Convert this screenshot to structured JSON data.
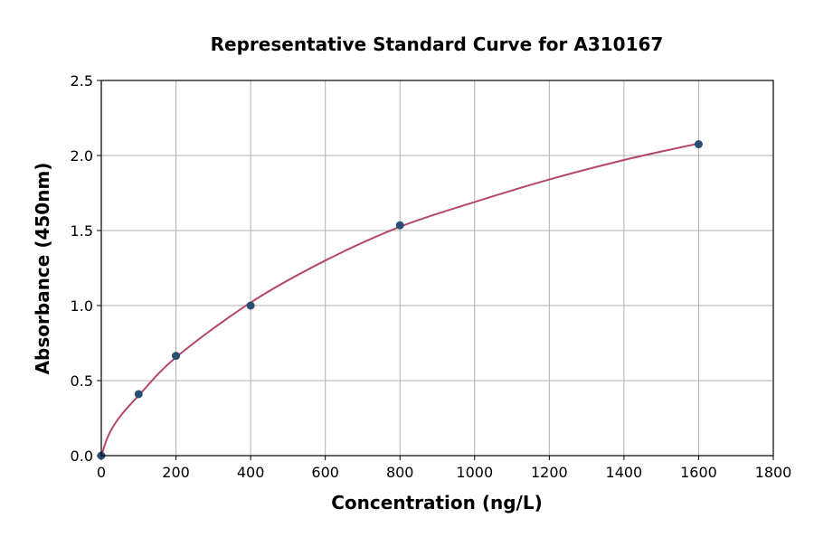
{
  "chart_data": {
    "type": "scatter",
    "title": "Representative Standard Curve for A310167",
    "xlabel": "Concentration (ng/L)",
    "ylabel": "Absorbance (450nm)",
    "xlim": [
      0,
      1800
    ],
    "ylim": [
      0,
      2.5
    ],
    "xticks": [
      0,
      200,
      400,
      600,
      800,
      1000,
      1200,
      1400,
      1600,
      1800
    ],
    "yticks": [
      0.0,
      0.5,
      1.0,
      1.5,
      2.0,
      2.5
    ],
    "grid": true,
    "points": {
      "x": [
        0,
        100,
        200,
        400,
        800,
        1600
      ],
      "y": [
        0.0,
        0.41,
        0.665,
        1.0,
        1.535,
        2.075
      ]
    },
    "fit_curve": {
      "x": [
        0,
        20,
        50,
        100,
        200,
        400,
        600,
        800,
        1000,
        1200,
        1400,
        1600
      ],
      "y": [
        0,
        0.14,
        0.26,
        0.4,
        0.655,
        1.02,
        1.3,
        1.525,
        1.69,
        1.84,
        1.97,
        2.08
      ]
    },
    "colors": {
      "points": "#2a4d74",
      "curve": "#b5476b",
      "grid": "#b0b0b0"
    }
  }
}
